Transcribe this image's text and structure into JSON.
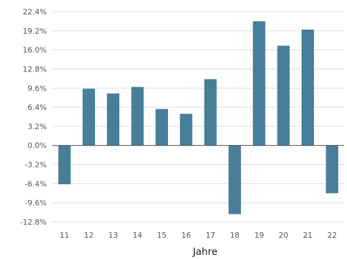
{
  "chart_data": {
    "type": "bar",
    "xlabel": "Jahre",
    "categories": [
      "11",
      "12",
      "13",
      "14",
      "15",
      "16",
      "17",
      "18",
      "19",
      "20",
      "21",
      "22"
    ],
    "values": [
      -6.5,
      9.5,
      8.7,
      9.8,
      6.1,
      5.3,
      11.1,
      -11.5,
      20.8,
      16.7,
      19.4,
      -8.0
    ],
    "ylim": [
      -12.8,
      22.4
    ],
    "yticks": [
      22.4,
      19.2,
      16.0,
      12.8,
      9.6,
      6.4,
      3.2,
      0.0,
      -3.2,
      -6.4,
      -9.6,
      -12.8
    ],
    "ytick_labels": [
      "22.4%",
      "19.2%",
      "16.0%",
      "12.8%",
      "9.6%",
      "6.4%",
      "3.2%",
      "0.0%",
      "-3.2%",
      "-6.4%",
      "-9.6%",
      "-12.8%"
    ],
    "grid": true,
    "bar_color": "#477e9a",
    "grid_color": "#dddddd",
    "zero_line_color": "#444444"
  }
}
